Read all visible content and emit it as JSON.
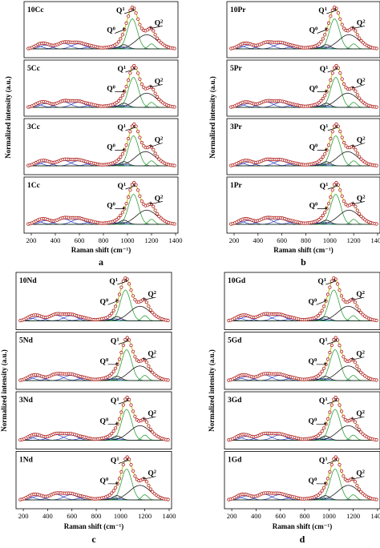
{
  "figure": {
    "xlabel": "Raman shift (cm⁻¹)",
    "ylabel": "Normalized intensity (a.u.)",
    "x_ticks": [
      200,
      400,
      600,
      800,
      1000,
      1200,
      1400
    ],
    "peak_labels": {
      "q0": "Q",
      "q1": "Q",
      "q2": "Q",
      "sup0": "0",
      "sup1": "1",
      "sup2": "2"
    },
    "colors": {
      "measured_marker": "#b0201c",
      "envelope": "#c8c21a",
      "q1_component": "#2ea23a",
      "q2_component": "#1a1a1a",
      "lowfreq_component": "#2d3fc4",
      "baseline": "#b13ab8",
      "frame": "#000000"
    }
  },
  "chart_data": [
    {
      "type": "line",
      "panel": "a",
      "xlim": [
        140,
        1420
      ],
      "legend": "none",
      "subplots": [
        {
          "label": "10Cc",
          "q1_x": 1040,
          "q2_x": 1160,
          "shoulder": 1200,
          "measured": "open circles",
          "grid": false
        },
        {
          "label": "5Cc",
          "q1_x": 1050,
          "q2_x": 1160,
          "shoulder": 1200,
          "measured": "open circles",
          "grid": false
        },
        {
          "label": "3Cc",
          "q1_x": 1050,
          "q2_x": 1150,
          "shoulder": 1200,
          "measured": "open circles",
          "grid": false
        },
        {
          "label": "1Cc",
          "q1_x": 1050,
          "q2_x": 1160,
          "shoulder": 1200,
          "measured": "open circles",
          "grid": false
        }
      ]
    },
    {
      "type": "line",
      "panel": "b",
      "xlim": [
        140,
        1420
      ],
      "legend": "none",
      "subplots": [
        {
          "label": "10Pr",
          "q1_x": 1040,
          "q2_x": 1160,
          "shoulder": 1200,
          "measured": "open circles",
          "grid": false
        },
        {
          "label": "5Pr",
          "q1_x": 1050,
          "q2_x": 1150,
          "shoulder": 1200,
          "measured": "open circles",
          "grid": false
        },
        {
          "label": "3Pr",
          "q1_x": 1050,
          "q2_x": 1150,
          "shoulder": 1200,
          "measured": "open circles",
          "grid": false
        },
        {
          "label": "1Pr",
          "q1_x": 1050,
          "q2_x": 1160,
          "shoulder": 1200,
          "measured": "open circles",
          "grid": false
        }
      ]
    },
    {
      "type": "line",
      "panel": "c",
      "xlim": [
        140,
        1420
      ],
      "legend": "none",
      "subplots": [
        {
          "label": "10Nd",
          "q1_x": 1040,
          "q2_x": 1160,
          "shoulder": 1200,
          "measured": "open circles",
          "grid": false
        },
        {
          "label": "5Nd",
          "q1_x": 1050,
          "q2_x": 1160,
          "shoulder": 1200,
          "measured": "open circles",
          "grid": false
        },
        {
          "label": "3Nd",
          "q1_x": 1050,
          "q2_x": 1160,
          "shoulder": 1200,
          "measured": "open circles",
          "grid": false
        },
        {
          "label": "1Nd",
          "q1_x": 1050,
          "q2_x": 1160,
          "shoulder": 1200,
          "measured": "open circles",
          "grid": false
        }
      ]
    },
    {
      "type": "line",
      "panel": "d",
      "xlim": [
        140,
        1420
      ],
      "legend": "none",
      "subplots": [
        {
          "label": "10Gd",
          "q1_x": 1040,
          "q2_x": 1160,
          "shoulder": 1200,
          "measured": "open circles",
          "grid": false
        },
        {
          "label": "5Gd",
          "q1_x": 1050,
          "q2_x": 1160,
          "shoulder": 1200,
          "measured": "open circles",
          "grid": false
        },
        {
          "label": "3Gd",
          "q1_x": 1050,
          "q2_x": 1160,
          "shoulder": 1200,
          "measured": "open circles",
          "grid": false
        },
        {
          "label": "1Gd",
          "q1_x": 1050,
          "q2_x": 1160,
          "shoulder": 1200,
          "measured": "open circles",
          "grid": false
        }
      ]
    }
  ]
}
